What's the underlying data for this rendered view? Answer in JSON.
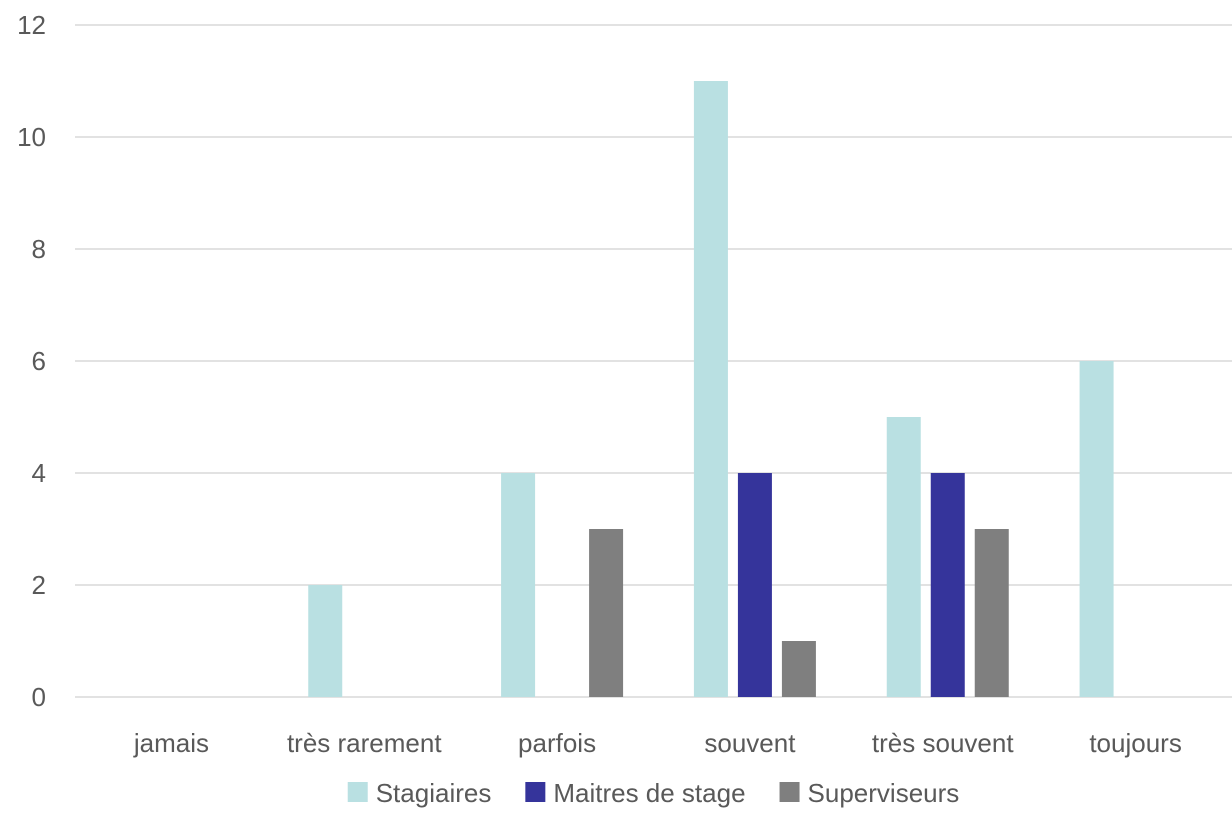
{
  "chart_data": {
    "type": "bar",
    "categories": [
      "jamais",
      "très rarement",
      "parfois",
      "souvent",
      "très souvent",
      "toujours"
    ],
    "series": [
      {
        "name": "Stagiaires",
        "color": "#b9e0e2",
        "values": [
          0,
          2,
          4,
          11,
          5,
          6
        ]
      },
      {
        "name": "Maitres de stage",
        "color": "#35349b",
        "values": [
          0,
          0,
          0,
          4,
          4,
          0
        ]
      },
      {
        "name": "Superviseurs",
        "color": "#7f7f7f",
        "values": [
          0,
          0,
          3,
          1,
          3,
          0
        ]
      }
    ],
    "ylim": [
      0,
      12
    ],
    "yticks": [
      0,
      2,
      4,
      6,
      8,
      10,
      12
    ],
    "grid": true,
    "legend": "bottom",
    "title": "",
    "xlabel": "",
    "ylabel": ""
  }
}
